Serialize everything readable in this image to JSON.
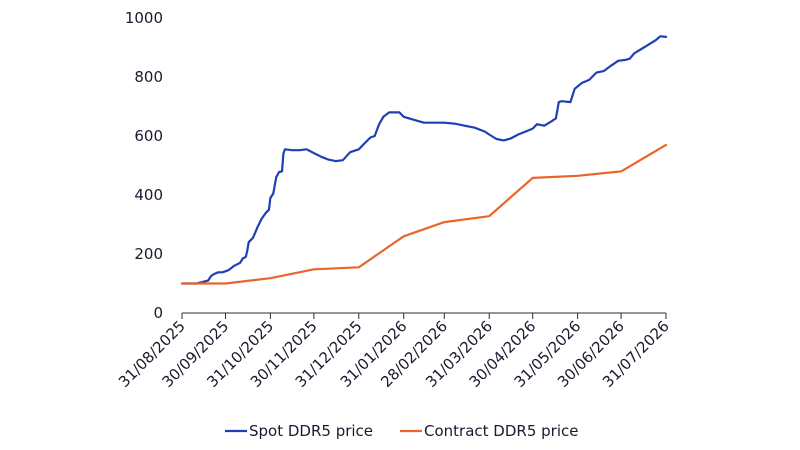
{
  "chart_data": {
    "type": "line",
    "title": "",
    "xlabel": "",
    "ylabel": "",
    "ylim": [
      0,
      1000
    ],
    "yticks": [
      "0",
      "200",
      "400",
      "600",
      "800",
      "1000"
    ],
    "xticks": [
      "31/08/2025",
      "30/09/2025",
      "31/10/2025",
      "30/11/2025",
      "31/12/2025",
      "31/01/2026",
      "28/02/2026",
      "31/03/2026",
      "30/04/2026",
      "31/05/2026",
      "30/06/2026",
      "31/07/2026"
    ],
    "grid": false,
    "legend_position": "bottom",
    "series": [
      {
        "name": "Spot DDR5 price",
        "color": "#1f3fb4",
        "points": [
          [
            "31/08/2025",
            100
          ],
          [
            "10/09/2025",
            100
          ],
          [
            "18/09/2025",
            110
          ],
          [
            "20/09/2025",
            125
          ],
          [
            "22/09/2025",
            132
          ],
          [
            "25/09/2025",
            138
          ],
          [
            "28/09/2025",
            138
          ],
          [
            "02/10/2025",
            145
          ],
          [
            "06/10/2025",
            160
          ],
          [
            "10/10/2025",
            170
          ],
          [
            "12/10/2025",
            185
          ],
          [
            "14/10/2025",
            190
          ],
          [
            "15/10/2025",
            210
          ],
          [
            "16/10/2025",
            240
          ],
          [
            "19/10/2025",
            255
          ],
          [
            "22/10/2025",
            290
          ],
          [
            "25/10/2025",
            320
          ],
          [
            "28/10/2025",
            340
          ],
          [
            "30/10/2025",
            350
          ],
          [
            "31/10/2025",
            390
          ],
          [
            "02/11/2025",
            405
          ],
          [
            "04/11/2025",
            460
          ],
          [
            "06/11/2025",
            478
          ],
          [
            "08/11/2025",
            480
          ],
          [
            "09/11/2025",
            540
          ],
          [
            "10/11/2025",
            555
          ],
          [
            "15/11/2025",
            552
          ],
          [
            "20/11/2025",
            552
          ],
          [
            "25/11/2025",
            555
          ],
          [
            "30/11/2025",
            542
          ],
          [
            "05/12/2025",
            530
          ],
          [
            "10/12/2025",
            520
          ],
          [
            "15/12/2025",
            515
          ],
          [
            "20/12/2025",
            518
          ],
          [
            "25/12/2025",
            545
          ],
          [
            "31/12/2025",
            555
          ],
          [
            "05/01/2026",
            580
          ],
          [
            "08/01/2026",
            595
          ],
          [
            "11/01/2026",
            600
          ],
          [
            "14/01/2026",
            640
          ],
          [
            "17/01/2026",
            665
          ],
          [
            "21/01/2026",
            680
          ],
          [
            "28/01/2026",
            680
          ],
          [
            "31/01/2026",
            665
          ],
          [
            "07/02/2026",
            655
          ],
          [
            "14/02/2026",
            645
          ],
          [
            "28/02/2026",
            645
          ],
          [
            "07/03/2026",
            642
          ],
          [
            "14/03/2026",
            635
          ],
          [
            "21/03/2026",
            628
          ],
          [
            "28/03/2026",
            615
          ],
          [
            "31/03/2026",
            605
          ],
          [
            "05/04/2026",
            590
          ],
          [
            "10/04/2026",
            585
          ],
          [
            "15/04/2026",
            592
          ],
          [
            "20/04/2026",
            605
          ],
          [
            "25/04/2026",
            615
          ],
          [
            "30/04/2026",
            625
          ],
          [
            "03/05/2026",
            640
          ],
          [
            "08/05/2026",
            635
          ],
          [
            "13/05/2026",
            650
          ],
          [
            "16/05/2026",
            660
          ],
          [
            "18/05/2026",
            715
          ],
          [
            "20/05/2026",
            718
          ],
          [
            "26/05/2026",
            715
          ],
          [
            "29/05/2026",
            760
          ],
          [
            "03/06/2026",
            780
          ],
          [
            "08/06/2026",
            790
          ],
          [
            "13/06/2026",
            815
          ],
          [
            "18/06/2026",
            820
          ],
          [
            "23/06/2026",
            838
          ],
          [
            "28/06/2026",
            855
          ],
          [
            "03/07/2026",
            858
          ],
          [
            "06/07/2026",
            862
          ],
          [
            "09/07/2026",
            880
          ],
          [
            "14/07/2026",
            895
          ],
          [
            "19/07/2026",
            910
          ],
          [
            "24/07/2026",
            925
          ],
          [
            "27/07/2026",
            938
          ],
          [
            "31/07/2026",
            936
          ]
        ]
      },
      {
        "name": "Contract DDR5 price",
        "color": "#e8662a",
        "points": [
          [
            "31/08/2025",
            100
          ],
          [
            "30/09/2025",
            100
          ],
          [
            "31/10/2025",
            118
          ],
          [
            "30/11/2025",
            148
          ],
          [
            "31/12/2025",
            155
          ],
          [
            "31/01/2026",
            260
          ],
          [
            "28/02/2026",
            308
          ],
          [
            "31/03/2026",
            328
          ],
          [
            "30/04/2026",
            458
          ],
          [
            "31/05/2026",
            465
          ],
          [
            "30/06/2026",
            480
          ],
          [
            "31/07/2026",
            570
          ]
        ]
      }
    ]
  }
}
